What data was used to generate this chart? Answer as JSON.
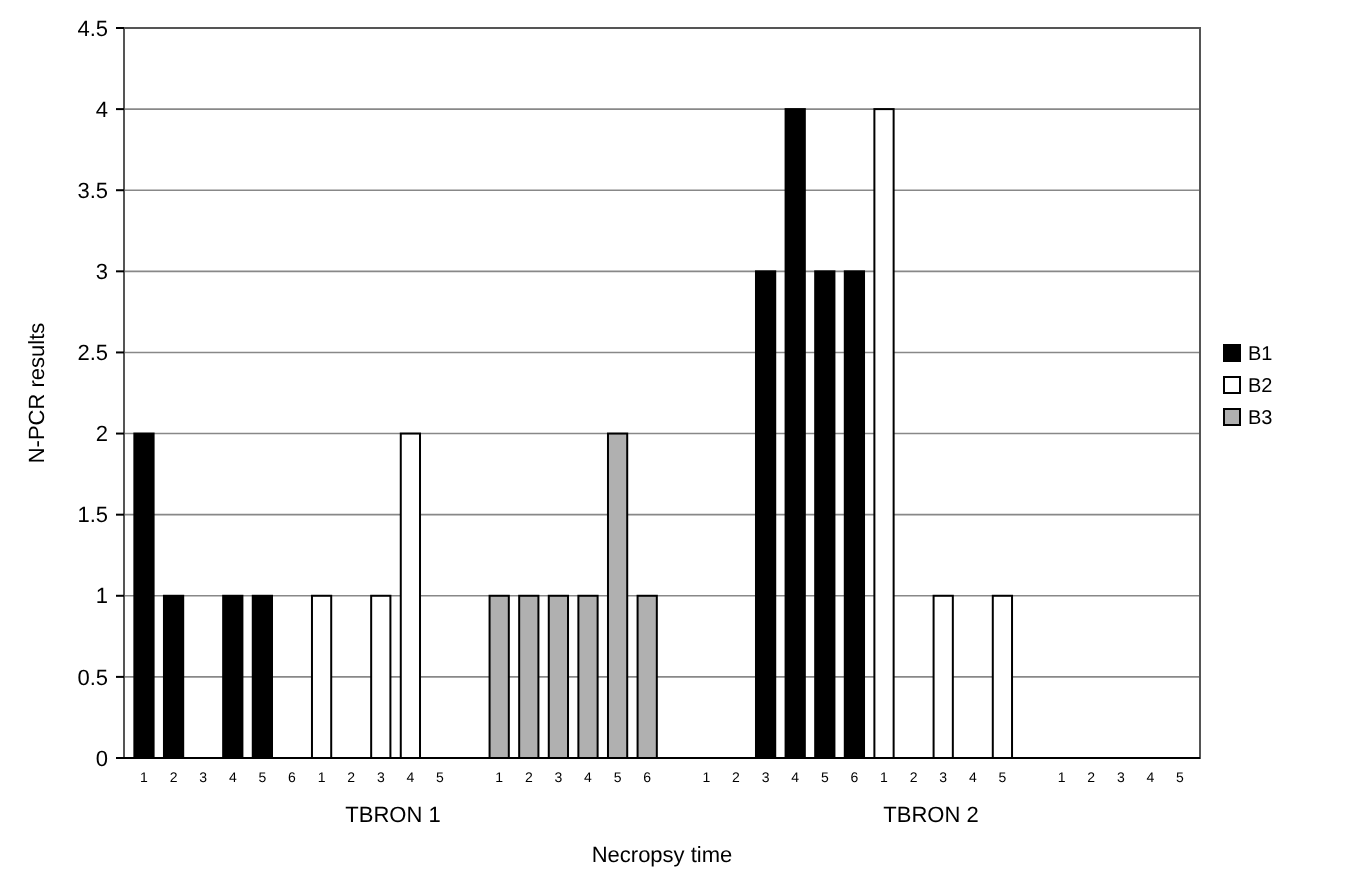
{
  "chart_data": {
    "type": "bar",
    "xlabel": "Necropsy time",
    "ylabel": "N-PCR results",
    "categories": [
      "1",
      "2",
      "3",
      "4",
      "5",
      "6",
      "1",
      "2",
      "3",
      "4",
      "5",
      null,
      "1",
      "2",
      "3",
      "4",
      "5",
      "6",
      null,
      "1",
      "2",
      "3",
      "4",
      "5",
      "6",
      "1",
      "2",
      "3",
      "4",
      "5",
      null,
      "1",
      "2",
      "3",
      "4",
      "5"
    ],
    "series": [
      {
        "name": "B1",
        "color": "#000000",
        "values": [
          2,
          1,
          0,
          1,
          1,
          0,
          null,
          null,
          null,
          null,
          null,
          null,
          null,
          null,
          null,
          null,
          null,
          null,
          null,
          0,
          0,
          3,
          4,
          3,
          3,
          null,
          null,
          null,
          null,
          null,
          null,
          null,
          null,
          null,
          null,
          null
        ]
      },
      {
        "name": "B2",
        "color": "#ffffff",
        "values": [
          null,
          null,
          null,
          null,
          null,
          null,
          1,
          0,
          1,
          2,
          0,
          null,
          null,
          null,
          null,
          null,
          null,
          null,
          null,
          null,
          null,
          null,
          null,
          null,
          null,
          4,
          0,
          1,
          0,
          1,
          null,
          null,
          null,
          null,
          null,
          null
        ]
      },
      {
        "name": "B3",
        "color": "#b0b0b0",
        "values": [
          null,
          null,
          null,
          null,
          null,
          null,
          null,
          null,
          null,
          null,
          null,
          null,
          1,
          1,
          1,
          1,
          2,
          1,
          null,
          null,
          null,
          null,
          null,
          null,
          null,
          null,
          null,
          null,
          null,
          null,
          null,
          0,
          0,
          0,
          0,
          0
        ]
      }
    ],
    "ylim": [
      0,
      4.5
    ],
    "yticks": [
      0,
      0.5,
      1,
      1.5,
      2,
      2.5,
      3,
      3.5,
      4,
      4.5
    ],
    "grid": "y",
    "legend": "right",
    "annotations": [
      "TBRON 1",
      "TBRON 2"
    ]
  }
}
